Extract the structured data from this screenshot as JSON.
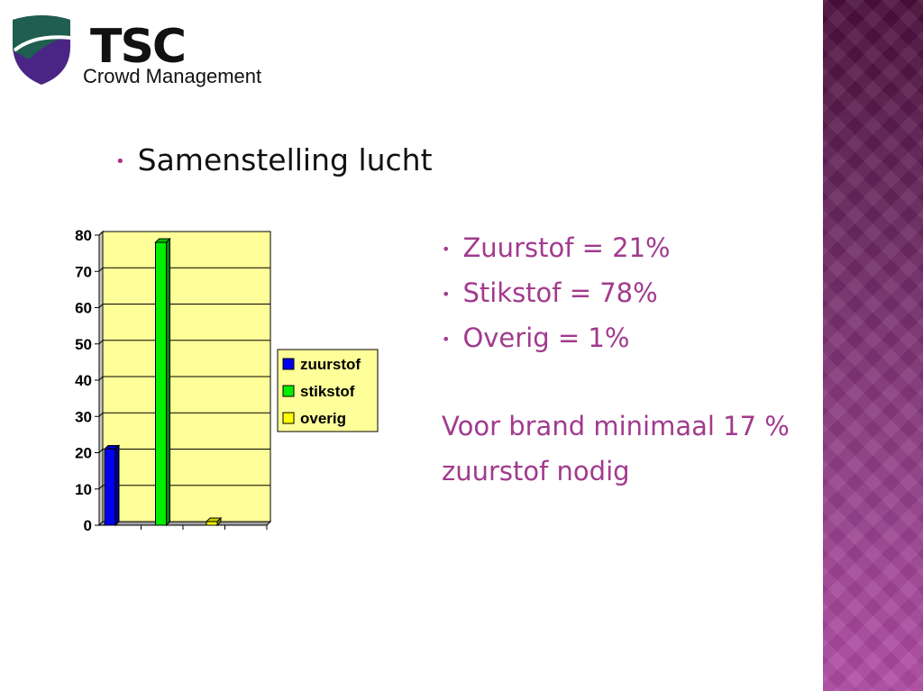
{
  "logo": {
    "name": "TSC",
    "tagline": "Crowd Management"
  },
  "title": "Samenstelling lucht",
  "facts": [
    "Zuurstof = 21%",
    "Stikstof = 78%",
    "Overig = 1%"
  ],
  "note": [
    "Voor brand minimaal 17 %",
    "zuurstof nodig"
  ],
  "colors": {
    "accent_text": "#a23a8e",
    "plot_bg": "#ffff99"
  },
  "chart_data": {
    "type": "bar",
    "categories": [
      "",
      "",
      ""
    ],
    "series": [
      {
        "name": "zuurstof",
        "color": "#0000ee",
        "values": [
          21,
          null,
          null
        ]
      },
      {
        "name": "stikstof",
        "color": "#00ee00",
        "values": [
          null,
          78,
          null
        ]
      },
      {
        "name": "overig",
        "color": "#ffff00",
        "values": [
          null,
          null,
          1
        ]
      }
    ],
    "ylim": [
      0,
      80
    ],
    "yticks": [
      "0",
      "10",
      "20",
      "30",
      "40",
      "50",
      "60",
      "70",
      "80"
    ],
    "grid": true,
    "legend": "right",
    "title": "",
    "xlabel": "",
    "ylabel": ""
  }
}
